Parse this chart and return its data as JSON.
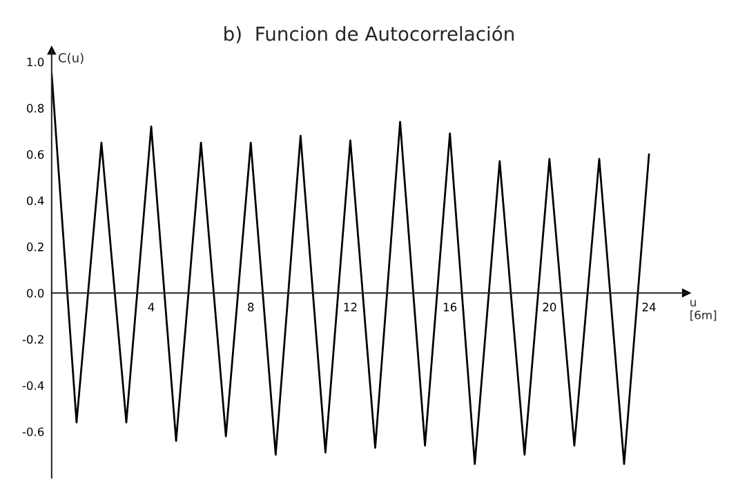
{
  "chart_data": {
    "type": "line",
    "title": "b)  Funcion de Autocorrelación",
    "xlabel": "u\n[6m]",
    "ylabel": "C(u)",
    "x": [
      0,
      1,
      2,
      3,
      4,
      5,
      6,
      7,
      8,
      9,
      10,
      11,
      12,
      13,
      14,
      15,
      16,
      17,
      18,
      19,
      20,
      21,
      22,
      23,
      24
    ],
    "series": [
      {
        "color": "#000000",
        "values": [
          0.95,
          -0.56,
          0.65,
          -0.56,
          0.72,
          -0.64,
          0.65,
          -0.62,
          0.65,
          -0.7,
          0.68,
          -0.69,
          0.66,
          -0.67,
          0.74,
          -0.66,
          0.69,
          -0.74,
          0.57,
          -0.7,
          0.58,
          -0.66,
          0.58,
          -0.74,
          0.6
        ]
      }
    ],
    "xlim": [
      0,
      25.5
    ],
    "ylim": [
      -0.8,
      1.05
    ],
    "xticks": [
      4,
      8,
      12,
      16,
      20,
      24
    ],
    "yticks": [
      {
        "value": -0.6,
        "label": "-0.6"
      },
      {
        "value": -0.4,
        "label": "-0.4"
      },
      {
        "value": -0.2,
        "label": "-0.2"
      },
      {
        "value": 0.0,
        "label": "0.0"
      },
      {
        "value": 0.2,
        "label": "0.2"
      },
      {
        "value": 0.4,
        "label": "0.4"
      },
      {
        "value": 0.6,
        "label": "0.6"
      },
      {
        "value": 0.8,
        "label": "0.8"
      },
      {
        "value": 1.0,
        "label": "1.0"
      }
    ],
    "grid": false,
    "marker": "none",
    "line_style": "solid"
  }
}
